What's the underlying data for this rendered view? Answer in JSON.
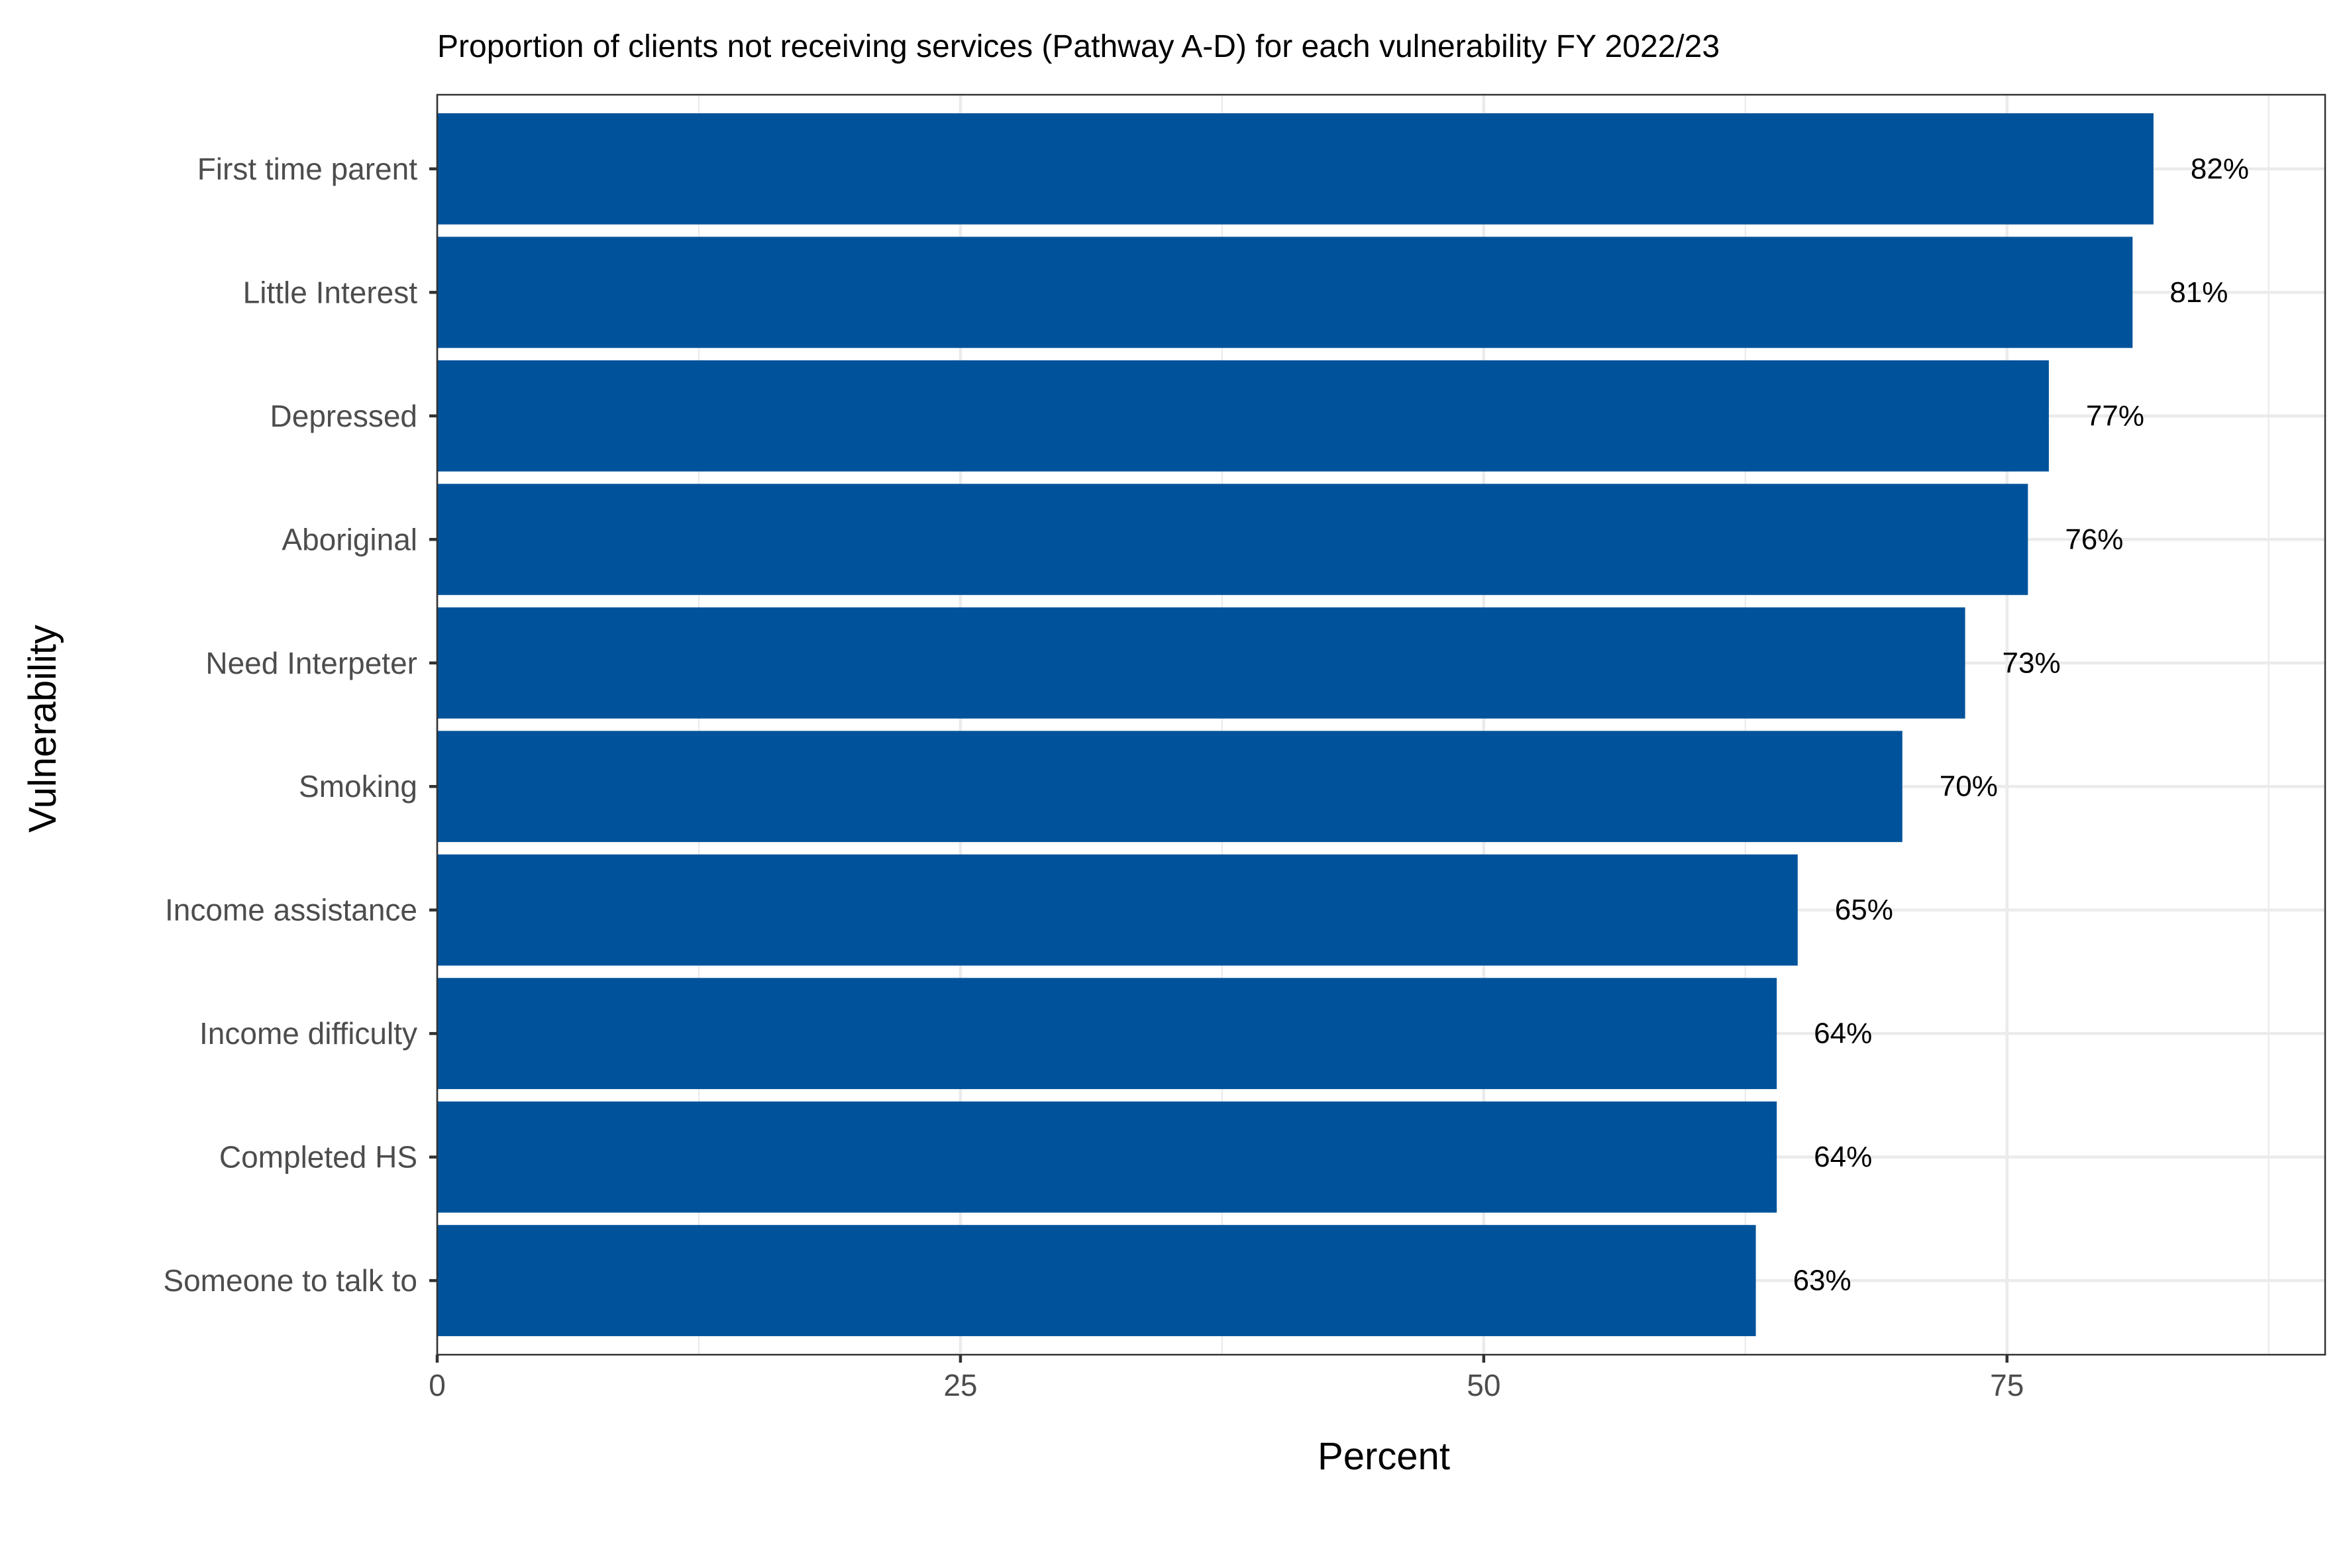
{
  "chart_data": {
    "type": "bar",
    "orientation": "horizontal",
    "title": "Proportion of clients not receiving services (Pathway A-D) for each vulnerability FY 2022/23",
    "xlabel": "Percent",
    "ylabel": "Vulnerability",
    "categories": [
      "First time parent",
      "Little Interest",
      "Depressed",
      "Aboriginal",
      "Need Interpeter",
      "Smoking",
      "Income assistance",
      "Income difficulty",
      "Completed HS",
      "Someone to talk to"
    ],
    "values": [
      82,
      81,
      77,
      76,
      73,
      70,
      65,
      64,
      64,
      63
    ],
    "data_labels": [
      "82%",
      "81%",
      "77%",
      "76%",
      "73%",
      "70%",
      "65%",
      "64%",
      "64%",
      "63%"
    ],
    "x_ticks": [
      0,
      25,
      50,
      75
    ],
    "x_tick_labels": [
      "0",
      "25",
      "50",
      "75"
    ],
    "xlim": [
      0,
      90.2
    ],
    "grid": true,
    "legend": "none",
    "bar_color": "#00539B"
  }
}
